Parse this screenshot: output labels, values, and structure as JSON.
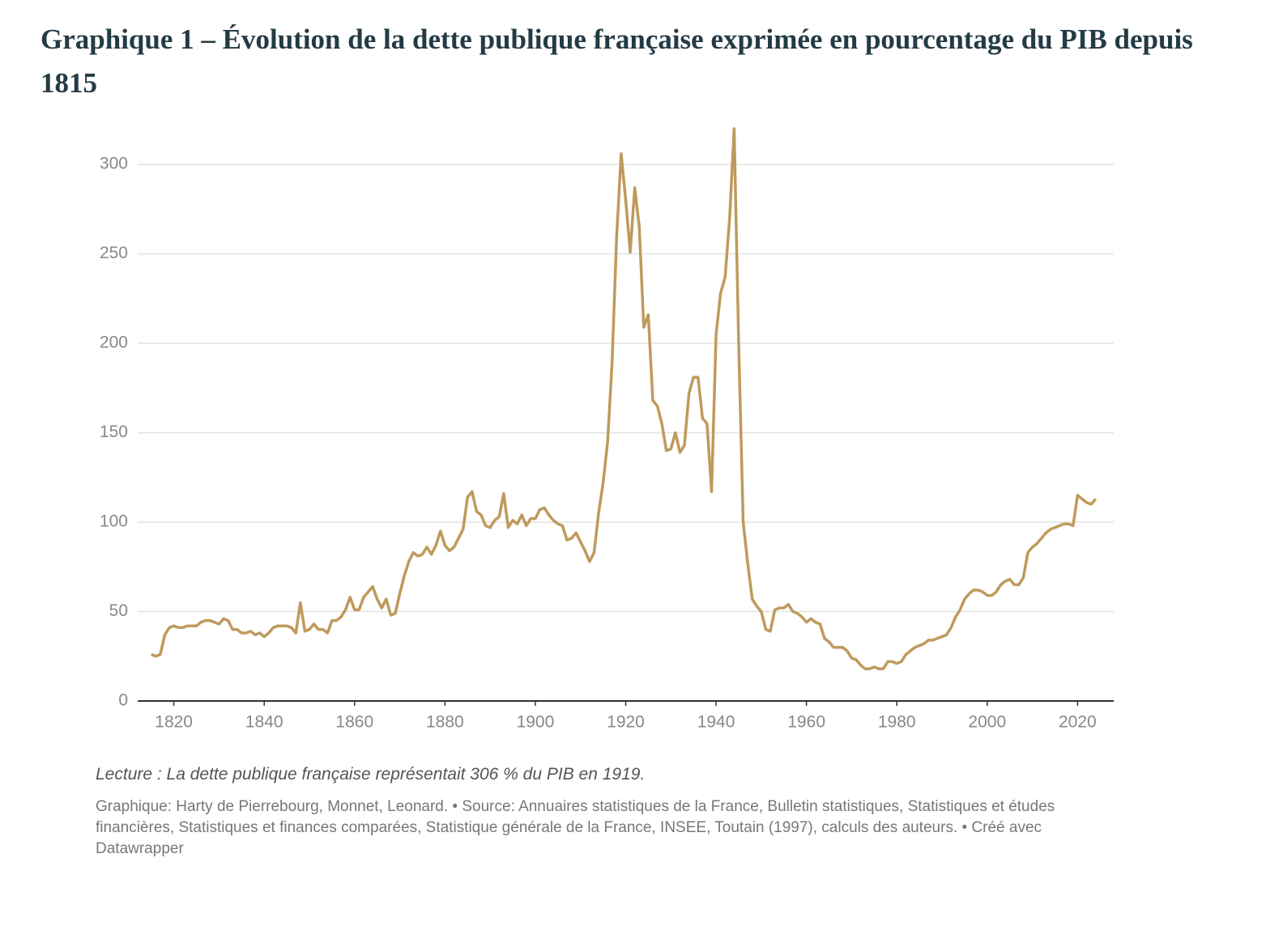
{
  "chart_data": {
    "type": "line",
    "title": "Graphique 1 – Évolution de la dette publique française exprimée en pourcentage du PIB depuis 1815",
    "note": "Lecture : La dette publique française représentait 306 % du PIB en 1919.",
    "source": "Graphique: Harty de Pierrebourg, Monnet, Leonard. • Source: Annuaires statistiques de la France, Bulletin statistiques, Statistiques et études financières, Statistiques et finances comparées, Statistique générale de la France, INSEE, Toutain (1997), calculs des auteurs. • Créé avec Datawrapper",
    "color": "#bf9a5c",
    "x": [
      1815,
      1816,
      1817,
      1818,
      1819,
      1820,
      1821,
      1822,
      1823,
      1824,
      1825,
      1826,
      1827,
      1828,
      1829,
      1830,
      1831,
      1832,
      1833,
      1834,
      1835,
      1836,
      1837,
      1838,
      1839,
      1840,
      1841,
      1842,
      1843,
      1844,
      1845,
      1846,
      1847,
      1848,
      1849,
      1850,
      1851,
      1852,
      1853,
      1854,
      1855,
      1856,
      1857,
      1858,
      1859,
      1860,
      1861,
      1862,
      1863,
      1864,
      1865,
      1866,
      1867,
      1868,
      1869,
      1870,
      1871,
      1872,
      1873,
      1874,
      1875,
      1876,
      1877,
      1878,
      1879,
      1880,
      1881,
      1882,
      1883,
      1884,
      1885,
      1886,
      1887,
      1888,
      1889,
      1890,
      1891,
      1892,
      1893,
      1894,
      1895,
      1896,
      1897,
      1898,
      1899,
      1900,
      1901,
      1902,
      1903,
      1904,
      1905,
      1906,
      1907,
      1908,
      1909,
      1910,
      1911,
      1912,
      1913,
      1914,
      1915,
      1916,
      1917,
      1918,
      1919,
      1920,
      1921,
      1922,
      1923,
      1924,
      1925,
      1926,
      1927,
      1928,
      1929,
      1930,
      1931,
      1932,
      1933,
      1934,
      1935,
      1936,
      1937,
      1938,
      1939,
      1940,
      1941,
      1942,
      1943,
      1944,
      1945,
      1946,
      1947,
      1948,
      1949,
      1950,
      1951,
      1952,
      1953,
      1954,
      1955,
      1956,
      1957,
      1958,
      1959,
      1960,
      1961,
      1962,
      1963,
      1964,
      1965,
      1966,
      1967,
      1968,
      1969,
      1970,
      1971,
      1972,
      1973,
      1974,
      1975,
      1976,
      1977,
      1978,
      1979,
      1980,
      1981,
      1982,
      1983,
      1984,
      1985,
      1986,
      1987,
      1988,
      1989,
      1990,
      1991,
      1992,
      1993,
      1994,
      1995,
      1996,
      1997,
      1998,
      1999,
      2000,
      2001,
      2002,
      2003,
      2004,
      2005,
      2006,
      2007,
      2008,
      2009,
      2010,
      2011,
      2012,
      2013,
      2014,
      2015,
      2016,
      2017,
      2018,
      2019,
      2020,
      2021,
      2022,
      2023,
      2024
    ],
    "values": [
      26,
      25,
      26,
      37,
      41,
      42,
      41,
      41,
      42,
      42,
      42,
      44,
      45,
      45,
      44,
      43,
      46,
      45,
      40,
      40,
      38,
      38,
      39,
      37,
      38,
      36,
      38,
      41,
      42,
      42,
      42,
      41,
      38,
      55,
      39,
      40,
      43,
      40,
      40,
      38,
      45,
      45,
      47,
      51,
      58,
      51,
      51,
      58,
      61,
      64,
      57,
      52,
      57,
      48,
      49,
      60,
      70,
      78,
      83,
      81,
      82,
      86,
      82,
      87,
      95,
      87,
      84,
      86,
      91,
      96,
      114,
      117,
      106,
      104,
      98,
      97,
      101,
      103,
      116,
      97,
      101,
      99,
      104,
      98,
      102,
      102,
      107,
      108,
      104,
      101,
      99,
      98,
      90,
      91,
      94,
      89,
      84,
      78,
      83,
      105,
      122,
      145,
      190,
      260,
      306,
      280,
      251,
      287,
      265,
      209,
      216,
      168,
      165,
      155,
      140,
      141,
      150,
      139,
      143,
      172,
      181,
      181,
      158,
      155,
      117,
      205,
      228,
      237,
      270,
      320,
      200,
      100,
      77,
      57,
      53,
      50,
      40,
      39,
      51,
      52,
      52,
      54,
      50,
      49,
      47,
      44,
      46,
      44,
      43,
      35,
      33,
      30,
      30,
      30,
      28,
      24,
      23,
      20,
      18,
      18,
      19,
      18,
      18,
      22,
      22,
      21,
      22,
      26,
      28,
      30,
      31,
      32,
      34,
      34,
      35,
      36,
      37,
      41,
      47,
      51,
      57,
      60,
      62,
      62,
      61,
      59,
      59,
      61,
      65,
      67,
      68,
      65,
      65,
      69,
      83,
      86,
      88,
      91,
      94,
      96,
      97,
      98,
      99,
      99,
      98,
      115,
      113,
      111,
      110,
      113
    ],
    "xlim": [
      1812,
      2028
    ],
    "xticks": [
      1820,
      1840,
      1860,
      1880,
      1900,
      1920,
      1940,
      1960,
      1980,
      2000,
      2020
    ],
    "ylim": [
      0,
      320
    ],
    "yticks": [
      0,
      50,
      100,
      150,
      200,
      250,
      300
    ],
    "grid": true
  }
}
